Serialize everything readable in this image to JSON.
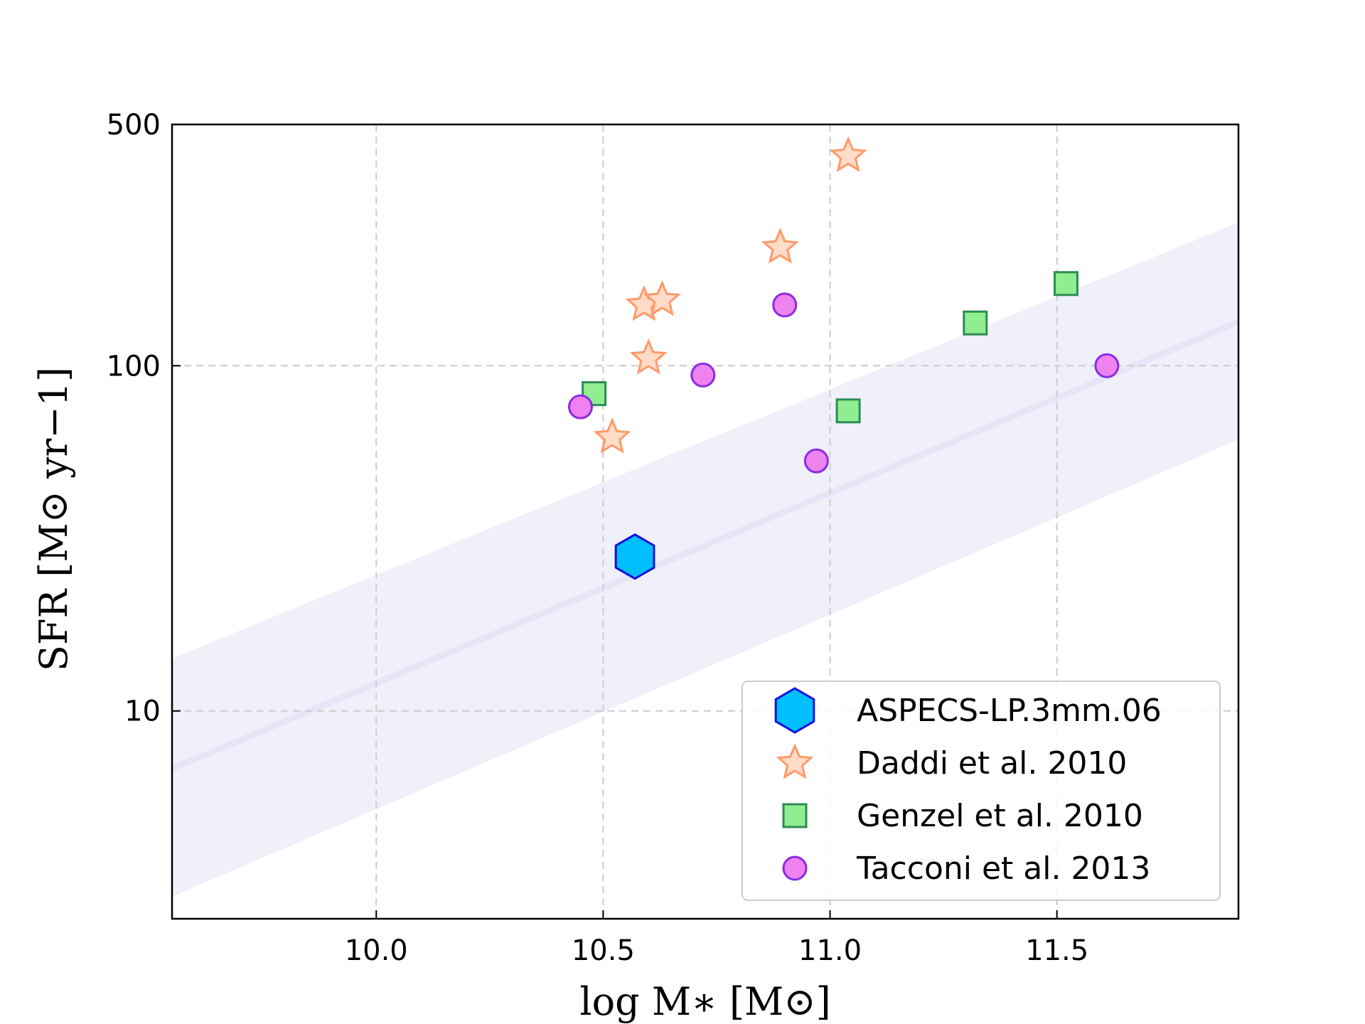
{
  "chart_data": {
    "type": "scatter",
    "title": "",
    "xlabel": "log M∗ [M⊙]",
    "ylabel": "SFR [M⊙ yr−1]",
    "xlim": [
      9.55,
      11.9
    ],
    "ylim": [
      2.5,
      500
    ],
    "yscale": "log",
    "grid": true,
    "x_ticks": [
      10.0,
      10.5,
      11.0,
      11.5
    ],
    "x_tick_labels": [
      "10.0",
      "10.5",
      "11.0",
      "11.5"
    ],
    "y_ticks": [
      10,
      100,
      500
    ],
    "y_tick_labels": [
      "10",
      "100",
      "500"
    ],
    "legend_position": "bottom-right",
    "main_sequence": {
      "x": [
        9.55,
        11.9
      ],
      "y": [
        6.8,
        134
      ],
      "band_low": [
        2.9,
        61
      ],
      "band_high": [
        14.2,
        260
      ],
      "color": "#e6e6f8",
      "band_color": "#f0f0fa"
    },
    "series": [
      {
        "name": "ASPECS-LP.3mm.06",
        "marker": "hexagon",
        "fill": "#00bfff",
        "edge": "#1010e0",
        "points": [
          {
            "x": 10.57,
            "y": 28
          }
        ]
      },
      {
        "name": "Daddi et al. 2010",
        "marker": "star",
        "fill": "#ffdcc8",
        "edge": "#ff9a6a",
        "points": [
          {
            "x": 10.52,
            "y": 62
          },
          {
            "x": 10.6,
            "y": 105
          },
          {
            "x": 10.59,
            "y": 150
          },
          {
            "x": 10.63,
            "y": 155
          },
          {
            "x": 10.89,
            "y": 220
          },
          {
            "x": 11.04,
            "y": 405
          }
        ]
      },
      {
        "name": "Genzel et al. 2010",
        "marker": "square",
        "fill": "#90ee90",
        "edge": "#2e8b57",
        "points": [
          {
            "x": 10.48,
            "y": 83
          },
          {
            "x": 11.04,
            "y": 74
          },
          {
            "x": 11.32,
            "y": 133
          },
          {
            "x": 11.52,
            "y": 173
          }
        ]
      },
      {
        "name": "Tacconi et al. 2013",
        "marker": "circle",
        "fill": "#ee82ee",
        "edge": "#8a2be2",
        "points": [
          {
            "x": 10.45,
            "y": 76
          },
          {
            "x": 10.72,
            "y": 94
          },
          {
            "x": 10.9,
            "y": 150
          },
          {
            "x": 10.97,
            "y": 53
          },
          {
            "x": 11.61,
            "y": 100
          }
        ]
      }
    ]
  }
}
